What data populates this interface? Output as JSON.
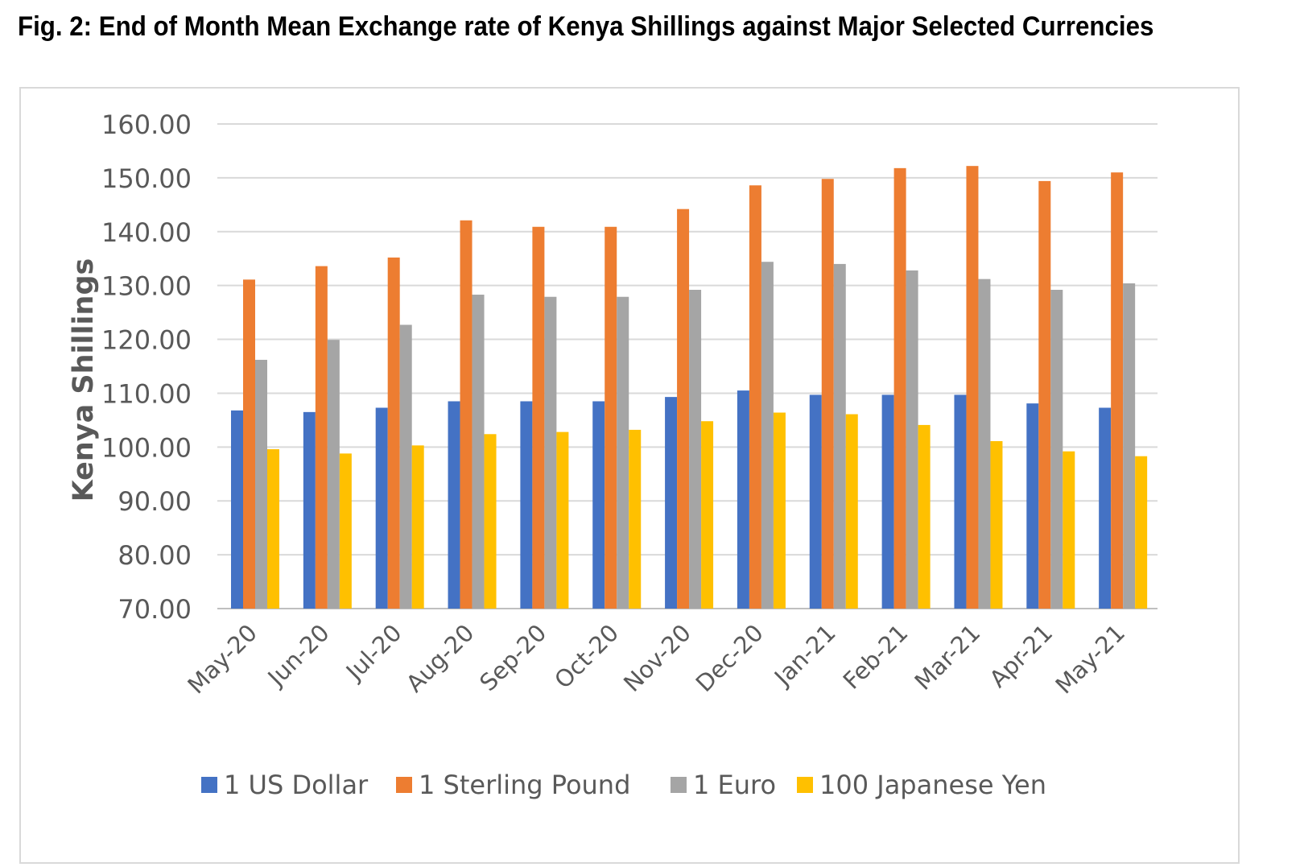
{
  "figure": {
    "title": "Fig. 2: End of Month Mean Exchange rate of Kenya Shillings against Major Selected Currencies"
  },
  "chart_data": {
    "type": "bar",
    "title": "Fig. 2: End of Month Mean Exchange rate of Kenya Shillings against Major Selected Currencies",
    "xlabel": "",
    "ylabel": "Kenya Shillings",
    "ylim": [
      70,
      160
    ],
    "yticks": [
      "70.00",
      "80.00",
      "90.00",
      "100.00",
      "110.00",
      "120.00",
      "130.00",
      "140.00",
      "150.00",
      "160.00"
    ],
    "grid": true,
    "legend_position": "bottom",
    "categories": [
      "May-20",
      "Jun-20",
      "Jul-20",
      "Aug-20",
      "Sep-20",
      "Oct-20",
      "Nov-20",
      "Dec-20",
      "Jan-21",
      "Feb-21",
      "Mar-21",
      "Apr-21",
      "May-21"
    ],
    "series": [
      {
        "name": "1 US Dollar",
        "color": "#4472C4",
        "values": [
          106.8,
          106.5,
          107.3,
          108.5,
          108.5,
          108.5,
          109.3,
          110.5,
          109.7,
          109.7,
          109.7,
          108.1,
          107.3
        ]
      },
      {
        "name": "1 Sterling Pound",
        "color": "#ED7D31",
        "values": [
          131.1,
          133.6,
          135.2,
          142.1,
          140.9,
          140.9,
          144.2,
          148.6,
          149.8,
          151.8,
          152.2,
          149.4,
          151.0
        ]
      },
      {
        "name": "1 Euro",
        "color": "#A5A5A5",
        "values": [
          116.2,
          119.9,
          122.7,
          128.3,
          127.9,
          127.9,
          129.2,
          134.4,
          134.0,
          132.8,
          131.2,
          129.2,
          130.4
        ]
      },
      {
        "name": "100 Japanese Yen",
        "color": "#FFC000",
        "values": [
          99.6,
          98.8,
          100.3,
          102.4,
          102.8,
          103.2,
          104.8,
          106.4,
          106.1,
          104.1,
          101.1,
          99.2,
          98.3
        ]
      }
    ]
  }
}
